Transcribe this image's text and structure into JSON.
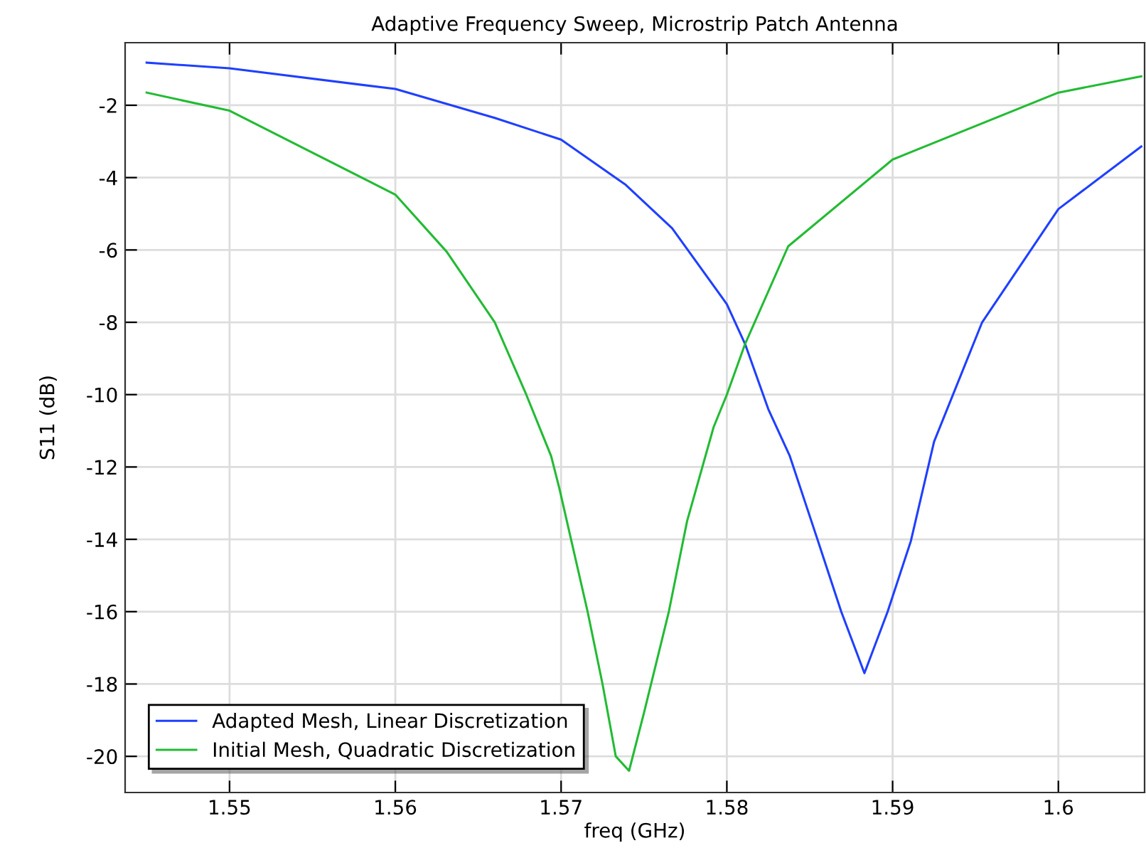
{
  "chart_data": {
    "type": "line",
    "title": "Adaptive Frequency Sweep, Microstrip Patch Antenna",
    "xlabel": "freq (GHz)",
    "ylabel": "S11 (dB)",
    "xlim": [
      1.5437,
      1.6052
    ],
    "ylim": [
      -21.0,
      -0.27
    ],
    "xticks": [
      {
        "value": 1.55,
        "label": "1.55"
      },
      {
        "value": 1.56,
        "label": "1.56"
      },
      {
        "value": 1.57,
        "label": "1.57"
      },
      {
        "value": 1.58,
        "label": "1.58"
      },
      {
        "value": 1.59,
        "label": "1.59"
      },
      {
        "value": 1.6,
        "label": "1.6"
      }
    ],
    "yticks": [
      -20,
      -18,
      -16,
      -14,
      -12,
      -10,
      -8,
      -6,
      -4,
      -2
    ],
    "grid": true,
    "legend": "bottom left",
    "marker": "none",
    "line_style": "solid",
    "series": [
      {
        "name": "Adapted Mesh, Linear Discretization",
        "color": "#1f3fff",
        "x": [
          1.545,
          1.55,
          1.56,
          1.566,
          1.57,
          1.5739,
          1.5767,
          1.58,
          1.5811,
          1.5825,
          1.5838,
          1.5855,
          1.5869,
          1.5883,
          1.5897,
          1.5911,
          1.5925,
          1.5954,
          1.6,
          1.605
        ],
        "values": [
          -0.82,
          -0.98,
          -1.55,
          -2.35,
          -2.95,
          -4.2,
          -5.4,
          -7.5,
          -8.6,
          -10.4,
          -11.7,
          -14.05,
          -16.0,
          -17.7,
          -16.0,
          -14.05,
          -11.3,
          -8.0,
          -4.87,
          -3.14
        ]
      },
      {
        "name": "Initial Mesh, Quadratic Discretization",
        "color": "#22bb33",
        "x": [
          1.545,
          1.55,
          1.56,
          1.5631,
          1.566,
          1.5679,
          1.5694,
          1.5699,
          1.5716,
          1.5725,
          1.5733,
          1.5741,
          1.575,
          1.5765,
          1.5776,
          1.5792,
          1.58,
          1.5811,
          1.5837,
          1.59,
          1.6,
          1.605
        ],
        "values": [
          -1.65,
          -2.15,
          -4.47,
          -6.05,
          -8.0,
          -10.0,
          -11.7,
          -12.6,
          -16.0,
          -18.0,
          -20.0,
          -20.4,
          -18.8,
          -16.0,
          -13.5,
          -10.9,
          -10.0,
          -8.6,
          -5.9,
          -3.5,
          -1.65,
          -1.2
        ]
      }
    ]
  }
}
